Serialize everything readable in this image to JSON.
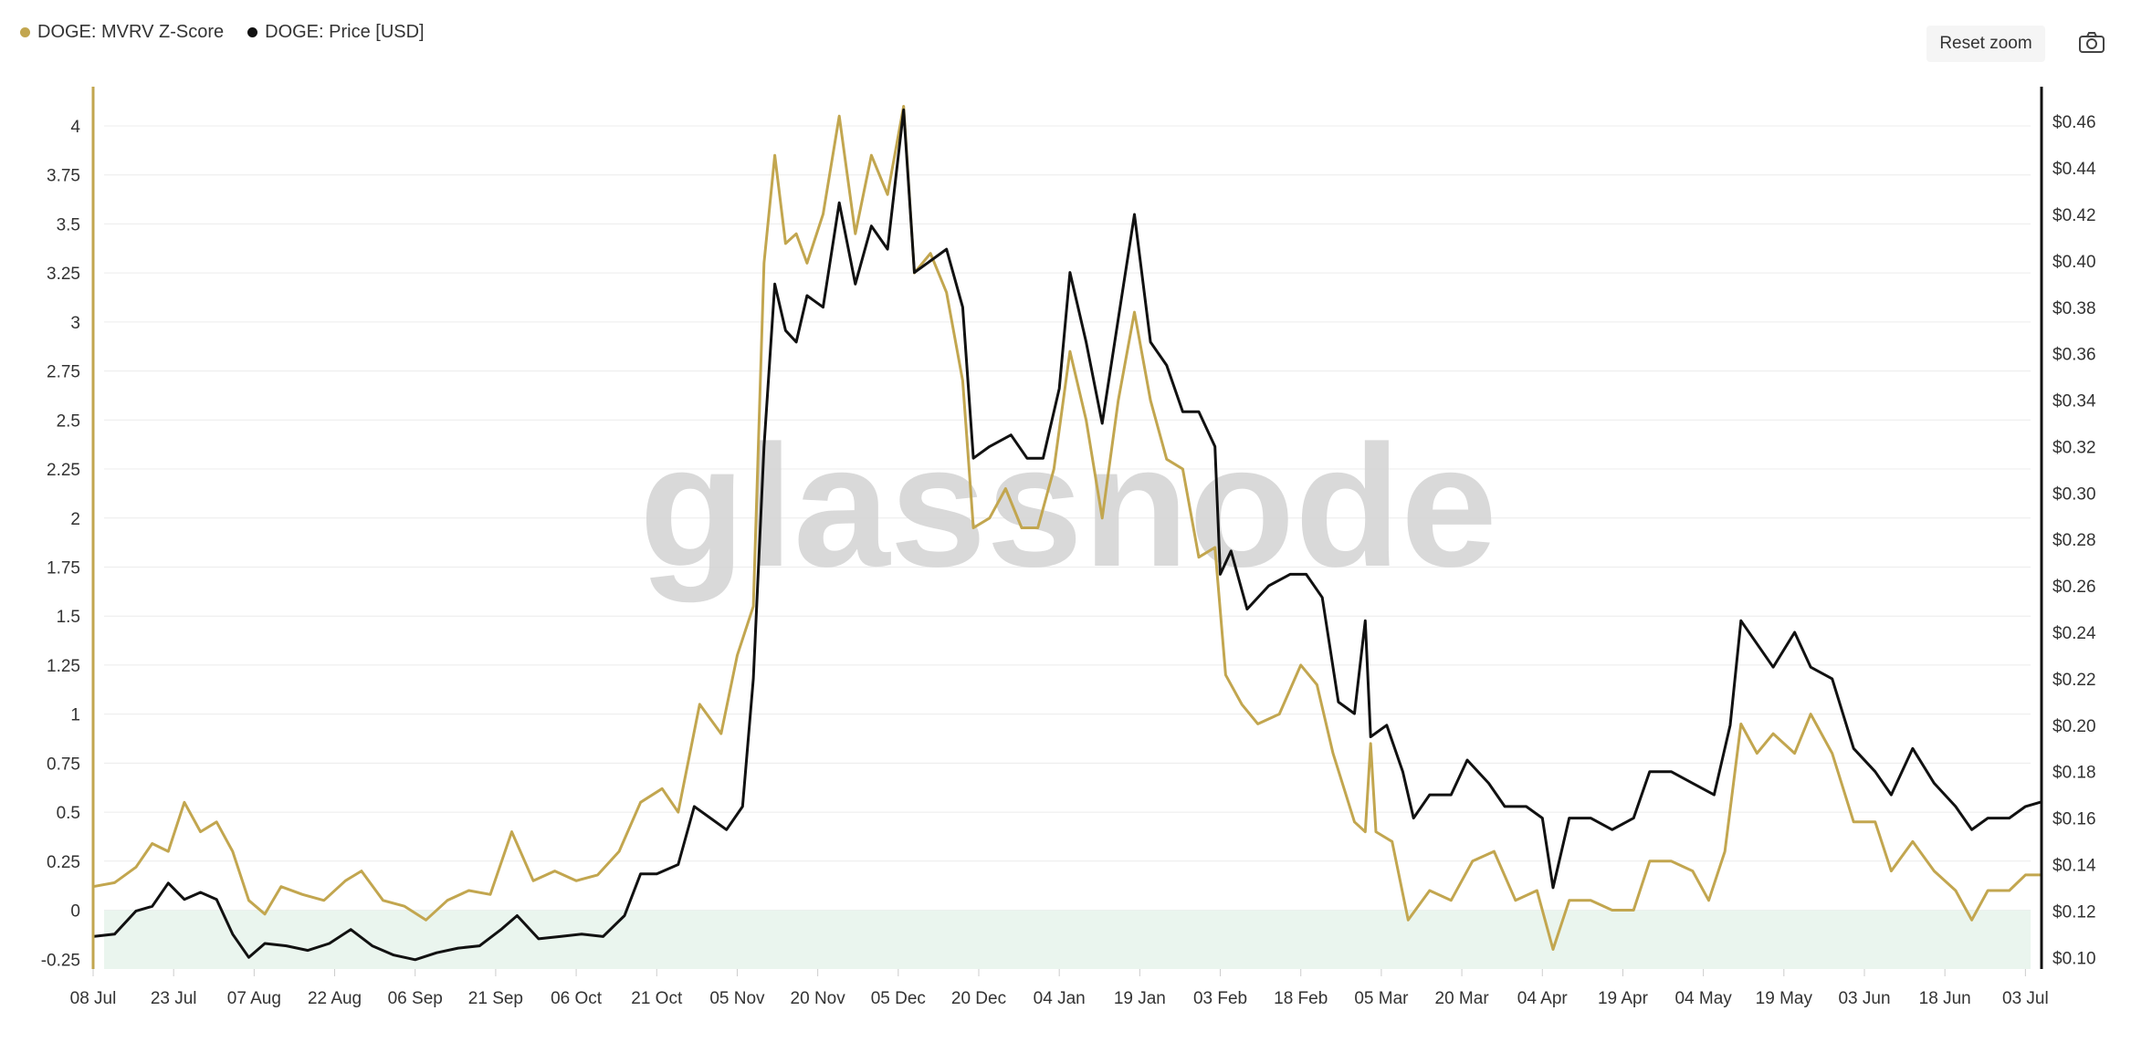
{
  "legend": [
    {
      "label": "DOGE: MVRV Z-Score",
      "color": "#c2a64f"
    },
    {
      "label": "DOGE: Price [USD]",
      "color": "#111111"
    }
  ],
  "toolbar": {
    "reset_zoom_label": "Reset zoom",
    "camera_icon": "camera-icon"
  },
  "watermark": "glassnode",
  "chart_data": {
    "type": "line",
    "title": "",
    "x_ticks": [
      "08 Jul",
      "23 Jul",
      "07 Aug",
      "22 Aug",
      "06 Sep",
      "21 Sep",
      "06 Oct",
      "21 Oct",
      "05 Nov",
      "20 Nov",
      "05 Dec",
      "20 Dec",
      "04 Jan",
      "19 Jan",
      "03 Feb",
      "18 Feb",
      "05 Mar",
      "20 Mar",
      "04 Apr",
      "19 Apr",
      "04 May",
      "19 May",
      "03 Jun",
      "18 Jun",
      "03 Jul"
    ],
    "x_range": [
      "2024-07-08",
      "2025-07-06"
    ],
    "y_left": {
      "label": "",
      "ticks": [
        "-0.25",
        "0",
        "0.25",
        "0.5",
        "0.75",
        "1",
        "1.25",
        "1.5",
        "1.75",
        "2",
        "2.25",
        "2.5",
        "2.75",
        "3",
        "3.25",
        "3.5",
        "3.75",
        "4"
      ],
      "range": [
        -0.3,
        4.2
      ],
      "negative_region_color": "#eaf5ee"
    },
    "y_right": {
      "label": "",
      "ticks": [
        "$0.10",
        "$0.12",
        "$0.14",
        "$0.16",
        "$0.18",
        "$0.20",
        "$0.22",
        "$0.24",
        "$0.26",
        "$0.28",
        "$0.30",
        "$0.32",
        "$0.34",
        "$0.36",
        "$0.38",
        "$0.40",
        "$0.42",
        "$0.44",
        "$0.46"
      ],
      "range": [
        0.095,
        0.475
      ]
    },
    "series": [
      {
        "name": "DOGE: MVRV Z-Score",
        "axis": "left",
        "color": "#c2a64f",
        "points": [
          [
            "2024-07-08",
            0.12
          ],
          [
            "2024-07-12",
            0.14
          ],
          [
            "2024-07-16",
            0.22
          ],
          [
            "2024-07-19",
            0.34
          ],
          [
            "2024-07-22",
            0.3
          ],
          [
            "2024-07-25",
            0.55
          ],
          [
            "2024-07-28",
            0.4
          ],
          [
            "2024-07-31",
            0.45
          ],
          [
            "2024-08-03",
            0.3
          ],
          [
            "2024-08-06",
            0.05
          ],
          [
            "2024-08-09",
            -0.02
          ],
          [
            "2024-08-12",
            0.12
          ],
          [
            "2024-08-16",
            0.08
          ],
          [
            "2024-08-20",
            0.05
          ],
          [
            "2024-08-24",
            0.15
          ],
          [
            "2024-08-27",
            0.2
          ],
          [
            "2024-08-31",
            0.05
          ],
          [
            "2024-09-04",
            0.02
          ],
          [
            "2024-09-08",
            -0.05
          ],
          [
            "2024-09-12",
            0.05
          ],
          [
            "2024-09-16",
            0.1
          ],
          [
            "2024-09-20",
            0.08
          ],
          [
            "2024-09-24",
            0.4
          ],
          [
            "2024-09-28",
            0.15
          ],
          [
            "2024-10-02",
            0.2
          ],
          [
            "2024-10-06",
            0.15
          ],
          [
            "2024-10-10",
            0.18
          ],
          [
            "2024-10-14",
            0.3
          ],
          [
            "2024-10-18",
            0.55
          ],
          [
            "2024-10-22",
            0.62
          ],
          [
            "2024-10-25",
            0.5
          ],
          [
            "2024-10-29",
            1.05
          ],
          [
            "2024-11-02",
            0.9
          ],
          [
            "2024-11-05",
            1.3
          ],
          [
            "2024-11-08",
            1.55
          ],
          [
            "2024-11-10",
            3.3
          ],
          [
            "2024-11-12",
            3.85
          ],
          [
            "2024-11-14",
            3.4
          ],
          [
            "2024-11-16",
            3.45
          ],
          [
            "2024-11-18",
            3.3
          ],
          [
            "2024-11-21",
            3.55
          ],
          [
            "2024-11-24",
            4.05
          ],
          [
            "2024-11-27",
            3.45
          ],
          [
            "2024-11-30",
            3.85
          ],
          [
            "2024-12-03",
            3.65
          ],
          [
            "2024-12-06",
            4.1
          ],
          [
            "2024-12-08",
            3.25
          ],
          [
            "2024-12-11",
            3.35
          ],
          [
            "2024-12-14",
            3.15
          ],
          [
            "2024-12-17",
            2.7
          ],
          [
            "2024-12-19",
            1.95
          ],
          [
            "2024-12-22",
            2.0
          ],
          [
            "2024-12-25",
            2.15
          ],
          [
            "2024-12-28",
            1.95
          ],
          [
            "2024-12-31",
            1.95
          ],
          [
            "2025-01-03",
            2.25
          ],
          [
            "2025-01-06",
            2.85
          ],
          [
            "2025-01-09",
            2.5
          ],
          [
            "2025-01-12",
            2.0
          ],
          [
            "2025-01-15",
            2.6
          ],
          [
            "2025-01-18",
            3.05
          ],
          [
            "2025-01-21",
            2.6
          ],
          [
            "2025-01-24",
            2.3
          ],
          [
            "2025-01-27",
            2.25
          ],
          [
            "2025-01-30",
            1.8
          ],
          [
            "2025-02-02",
            1.85
          ],
          [
            "2025-02-04",
            1.2
          ],
          [
            "2025-02-07",
            1.05
          ],
          [
            "2025-02-10",
            0.95
          ],
          [
            "2025-02-14",
            1.0
          ],
          [
            "2025-02-18",
            1.25
          ],
          [
            "2025-02-21",
            1.15
          ],
          [
            "2025-02-24",
            0.8
          ],
          [
            "2025-02-28",
            0.45
          ],
          [
            "2025-03-02",
            0.4
          ],
          [
            "2025-03-03",
            0.85
          ],
          [
            "2025-03-04",
            0.4
          ],
          [
            "2025-03-07",
            0.35
          ],
          [
            "2025-03-10",
            -0.05
          ],
          [
            "2025-03-14",
            0.1
          ],
          [
            "2025-03-18",
            0.05
          ],
          [
            "2025-03-22",
            0.25
          ],
          [
            "2025-03-26",
            0.3
          ],
          [
            "2025-03-30",
            0.05
          ],
          [
            "2025-04-03",
            0.1
          ],
          [
            "2025-04-06",
            -0.2
          ],
          [
            "2025-04-09",
            0.05
          ],
          [
            "2025-04-13",
            0.05
          ],
          [
            "2025-04-17",
            0.0
          ],
          [
            "2025-04-21",
            0.0
          ],
          [
            "2025-04-24",
            0.25
          ],
          [
            "2025-04-28",
            0.25
          ],
          [
            "2025-05-02",
            0.2
          ],
          [
            "2025-05-05",
            0.05
          ],
          [
            "2025-05-08",
            0.3
          ],
          [
            "2025-05-11",
            0.95
          ],
          [
            "2025-05-14",
            0.8
          ],
          [
            "2025-05-17",
            0.9
          ],
          [
            "2025-05-21",
            0.8
          ],
          [
            "2025-05-24",
            1.0
          ],
          [
            "2025-05-28",
            0.8
          ],
          [
            "2025-06-01",
            0.45
          ],
          [
            "2025-06-05",
            0.45
          ],
          [
            "2025-06-08",
            0.2
          ],
          [
            "2025-06-12",
            0.35
          ],
          [
            "2025-06-16",
            0.2
          ],
          [
            "2025-06-20",
            0.1
          ],
          [
            "2025-06-23",
            -0.05
          ],
          [
            "2025-06-26",
            0.1
          ],
          [
            "2025-06-30",
            0.1
          ],
          [
            "2025-07-03",
            0.18
          ],
          [
            "2025-07-06",
            0.18
          ]
        ]
      },
      {
        "name": "DOGE: Price [USD]",
        "axis": "right",
        "color": "#111111",
        "points": [
          [
            "2024-07-08",
            0.109
          ],
          [
            "2024-07-12",
            0.11
          ],
          [
            "2024-07-16",
            0.12
          ],
          [
            "2024-07-19",
            0.122
          ],
          [
            "2024-07-22",
            0.132
          ],
          [
            "2024-07-25",
            0.125
          ],
          [
            "2024-07-28",
            0.128
          ],
          [
            "2024-07-31",
            0.125
          ],
          [
            "2024-08-03",
            0.11
          ],
          [
            "2024-08-06",
            0.1
          ],
          [
            "2024-08-09",
            0.106
          ],
          [
            "2024-08-13",
            0.105
          ],
          [
            "2024-08-17",
            0.103
          ],
          [
            "2024-08-21",
            0.106
          ],
          [
            "2024-08-25",
            0.112
          ],
          [
            "2024-08-29",
            0.105
          ],
          [
            "2024-09-02",
            0.101
          ],
          [
            "2024-09-06",
            0.099
          ],
          [
            "2024-09-10",
            0.102
          ],
          [
            "2024-09-14",
            0.104
          ],
          [
            "2024-09-18",
            0.105
          ],
          [
            "2024-09-22",
            0.112
          ],
          [
            "2024-09-25",
            0.118
          ],
          [
            "2024-09-29",
            0.108
          ],
          [
            "2024-10-03",
            0.109
          ],
          [
            "2024-10-07",
            0.11
          ],
          [
            "2024-10-11",
            0.109
          ],
          [
            "2024-10-15",
            0.118
          ],
          [
            "2024-10-18",
            0.136
          ],
          [
            "2024-10-21",
            0.136
          ],
          [
            "2024-10-25",
            0.14
          ],
          [
            "2024-10-28",
            0.165
          ],
          [
            "2024-10-31",
            0.16
          ],
          [
            "2024-11-03",
            0.155
          ],
          [
            "2024-11-06",
            0.165
          ],
          [
            "2024-11-08",
            0.22
          ],
          [
            "2024-11-10",
            0.32
          ],
          [
            "2024-11-12",
            0.39
          ],
          [
            "2024-11-14",
            0.37
          ],
          [
            "2024-11-16",
            0.365
          ],
          [
            "2024-11-18",
            0.385
          ],
          [
            "2024-11-21",
            0.38
          ],
          [
            "2024-11-24",
            0.425
          ],
          [
            "2024-11-27",
            0.39
          ],
          [
            "2024-11-30",
            0.415
          ],
          [
            "2024-12-03",
            0.405
          ],
          [
            "2024-12-06",
            0.465
          ],
          [
            "2024-12-08",
            0.395
          ],
          [
            "2024-12-11",
            0.4
          ],
          [
            "2024-12-14",
            0.405
          ],
          [
            "2024-12-17",
            0.38
          ],
          [
            "2024-12-19",
            0.315
          ],
          [
            "2024-12-22",
            0.32
          ],
          [
            "2024-12-26",
            0.325
          ],
          [
            "2024-12-29",
            0.315
          ],
          [
            "2025-01-01",
            0.315
          ],
          [
            "2025-01-04",
            0.345
          ],
          [
            "2025-01-06",
            0.395
          ],
          [
            "2025-01-09",
            0.365
          ],
          [
            "2025-01-12",
            0.33
          ],
          [
            "2025-01-15",
            0.375
          ],
          [
            "2025-01-18",
            0.42
          ],
          [
            "2025-01-21",
            0.365
          ],
          [
            "2025-01-24",
            0.355
          ],
          [
            "2025-01-27",
            0.335
          ],
          [
            "2025-01-30",
            0.335
          ],
          [
            "2025-02-02",
            0.32
          ],
          [
            "2025-02-03",
            0.265
          ],
          [
            "2025-02-05",
            0.275
          ],
          [
            "2025-02-08",
            0.25
          ],
          [
            "2025-02-12",
            0.26
          ],
          [
            "2025-02-16",
            0.265
          ],
          [
            "2025-02-19",
            0.265
          ],
          [
            "2025-02-22",
            0.255
          ],
          [
            "2025-02-25",
            0.21
          ],
          [
            "2025-02-28",
            0.205
          ],
          [
            "2025-03-02",
            0.245
          ],
          [
            "2025-03-03",
            0.195
          ],
          [
            "2025-03-06",
            0.2
          ],
          [
            "2025-03-09",
            0.18
          ],
          [
            "2025-03-11",
            0.16
          ],
          [
            "2025-03-14",
            0.17
          ],
          [
            "2025-03-18",
            0.17
          ],
          [
            "2025-03-21",
            0.185
          ],
          [
            "2025-03-25",
            0.175
          ],
          [
            "2025-03-28",
            0.165
          ],
          [
            "2025-04-01",
            0.165
          ],
          [
            "2025-04-04",
            0.16
          ],
          [
            "2025-04-06",
            0.13
          ],
          [
            "2025-04-09",
            0.16
          ],
          [
            "2025-04-13",
            0.16
          ],
          [
            "2025-04-17",
            0.155
          ],
          [
            "2025-04-21",
            0.16
          ],
          [
            "2025-04-24",
            0.18
          ],
          [
            "2025-04-28",
            0.18
          ],
          [
            "2025-05-02",
            0.175
          ],
          [
            "2025-05-06",
            0.17
          ],
          [
            "2025-05-09",
            0.2
          ],
          [
            "2025-05-11",
            0.245
          ],
          [
            "2025-05-14",
            0.235
          ],
          [
            "2025-05-17",
            0.225
          ],
          [
            "2025-05-21",
            0.24
          ],
          [
            "2025-05-24",
            0.225
          ],
          [
            "2025-05-28",
            0.22
          ],
          [
            "2025-06-01",
            0.19
          ],
          [
            "2025-06-05",
            0.18
          ],
          [
            "2025-06-08",
            0.17
          ],
          [
            "2025-06-12",
            0.19
          ],
          [
            "2025-06-16",
            0.175
          ],
          [
            "2025-06-20",
            0.165
          ],
          [
            "2025-06-23",
            0.155
          ],
          [
            "2025-06-26",
            0.16
          ],
          [
            "2025-06-30",
            0.16
          ],
          [
            "2025-07-03",
            0.165
          ],
          [
            "2025-07-06",
            0.167
          ]
        ]
      }
    ],
    "grid": true,
    "legend_position": "top-left"
  }
}
